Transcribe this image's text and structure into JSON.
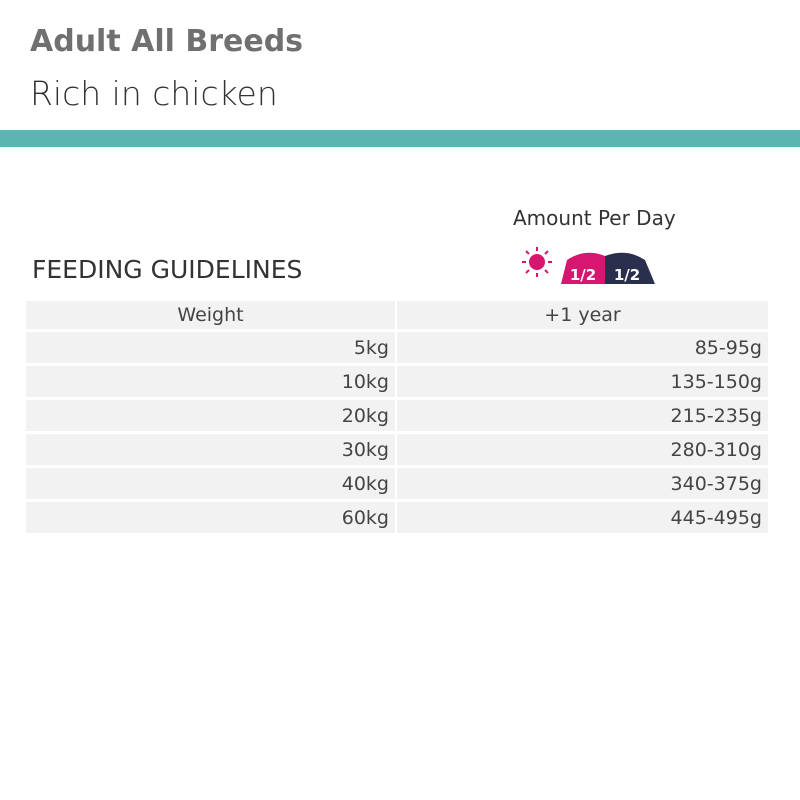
{
  "header": {
    "title": "Adult All Breeds",
    "subtitle": "Rich in chicken"
  },
  "section_title": "FEEDING GUIDELINES",
  "amount_label": "Amount Per Day",
  "portion_icon": {
    "morning": "1/2",
    "evening": "1/2"
  },
  "table": {
    "columns": [
      "Weight",
      "+1 year"
    ],
    "rows": [
      [
        "5kg",
        "85-95g"
      ],
      [
        "10kg",
        "135-150g"
      ],
      [
        "20kg",
        "215-235g"
      ],
      [
        "30kg",
        "280-310g"
      ],
      [
        "40kg",
        "340-375g"
      ],
      [
        "60kg",
        "445-495g"
      ]
    ]
  }
}
